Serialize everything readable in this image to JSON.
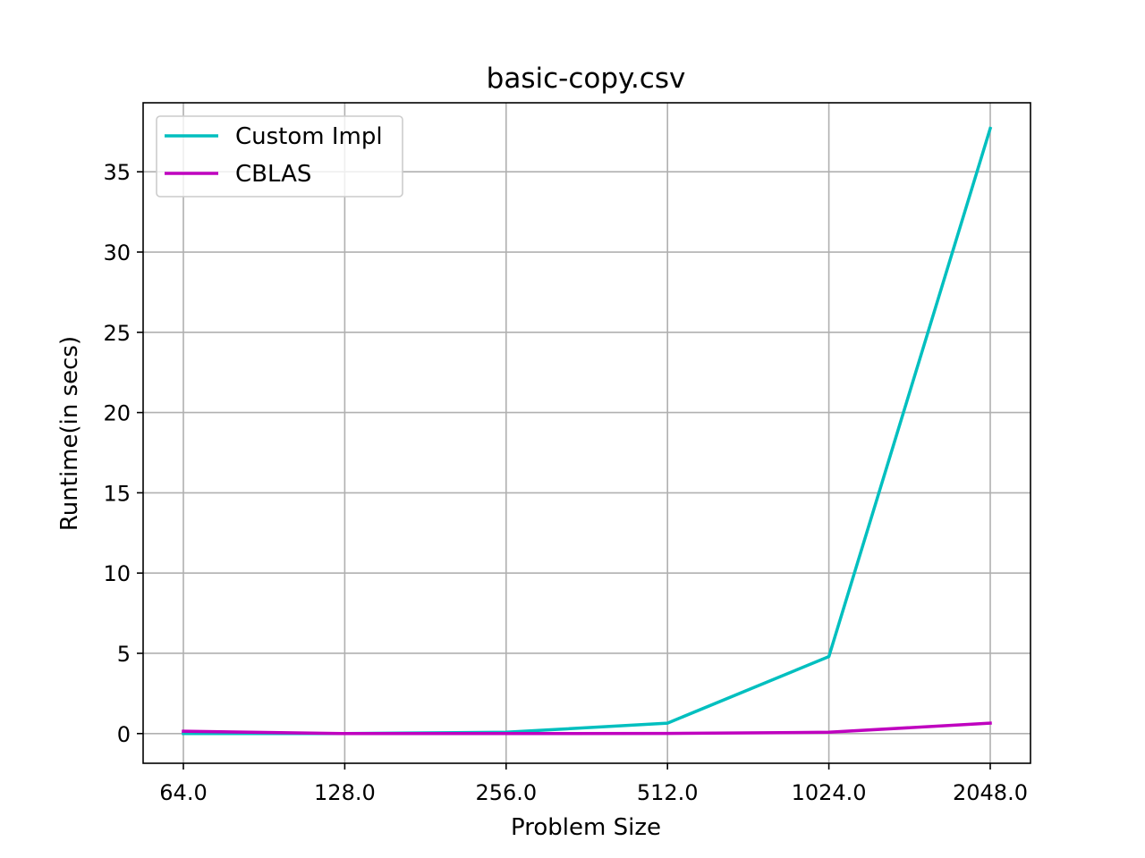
{
  "chart_data": {
    "type": "line",
    "title": "basic-copy.csv",
    "xlabel": "Problem Size",
    "ylabel": "Runtime(in secs)",
    "x": [
      64.0,
      128.0,
      256.0,
      512.0,
      1024.0,
      2048.0
    ],
    "x_tick_labels": [
      "64.0",
      "128.0",
      "256.0",
      "512.0",
      "1024.0",
      "2048.0"
    ],
    "x_scale": "log2",
    "y_ticks": [
      0,
      5,
      10,
      15,
      20,
      25,
      30,
      35
    ],
    "y_tick_labels": [
      "0",
      "5",
      "10",
      "15",
      "20",
      "25",
      "30",
      "35"
    ],
    "ylim": [
      -1.85,
      39.3
    ],
    "grid": true,
    "legend_position": "top-left",
    "series": [
      {
        "name": "Custom Impl",
        "color": "#00bfbf",
        "values": [
          0.0,
          0.0,
          0.08,
          0.65,
          4.8,
          37.7
        ]
      },
      {
        "name": "CBLAS",
        "color": "#bf00bf",
        "values": [
          0.15,
          0.0,
          0.0,
          0.01,
          0.08,
          0.65
        ]
      }
    ]
  }
}
